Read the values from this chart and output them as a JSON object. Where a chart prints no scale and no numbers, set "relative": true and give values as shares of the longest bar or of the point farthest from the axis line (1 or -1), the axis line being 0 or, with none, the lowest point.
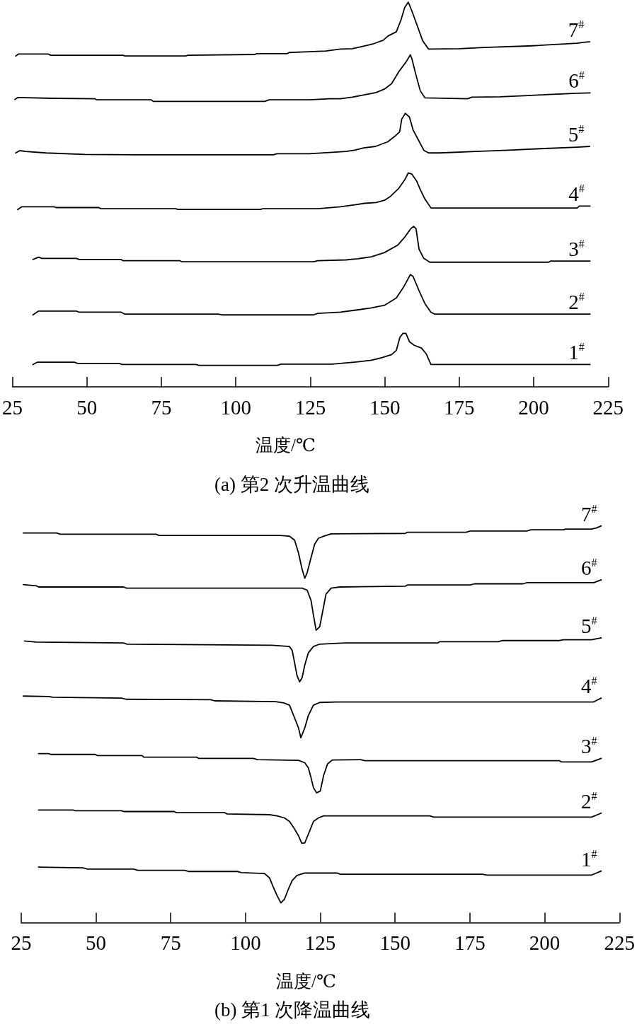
{
  "chart_data": [
    {
      "type": "line",
      "title": "(a) 第2 次升温曲线",
      "xlabel": "温度/℃",
      "relative": true,
      "xlim": [
        25,
        225
      ],
      "xticks": [
        25,
        50,
        75,
        100,
        125,
        150,
        175,
        200,
        225
      ],
      "marker": "none",
      "line_style": "solid",
      "series": [
        {
          "name": "1$^{#}$",
          "color": "#000000",
          "x": [
            31.9,
            33.3,
            45.8,
            46.9,
            60.8,
            61.9,
            86.6,
            87.7,
            113.9,
            115.2,
            132.3,
            138.4,
            139.8,
            145.5,
            149.1,
            152.3,
            153.9,
            155.1,
            156.1,
            157.1,
            158.3,
            159.9,
            162.3,
            163.9,
            165.5,
            218.9
          ],
          "values": [
            0.058,
            0.064,
            0.064,
            0.061,
            0.061,
            0.058,
            0.058,
            0.056,
            0.056,
            0.059,
            0.059,
            0.063,
            0.064,
            0.069,
            0.076,
            0.084,
            0.095,
            0.129,
            0.139,
            0.139,
            0.117,
            0.108,
            0.101,
            0.086,
            0.058,
            0.058
          ]
        },
        {
          "name": "2$^{#}$",
          "color": "#000000",
          "x": [
            31.9,
            33.8,
            46.5,
            47.4,
            61.5,
            62.8,
            94.1,
            95.5,
            126.1,
            127.5,
            135.1,
            139.8,
            145.5,
            149.9,
            153.9,
            156.3,
            158.6,
            159.5,
            161.5,
            163.5,
            165.5,
            166.8,
            218.9
          ],
          "values": [
            0.187,
            0.197,
            0.197,
            0.194,
            0.194,
            0.189,
            0.189,
            0.187,
            0.187,
            0.191,
            0.194,
            0.199,
            0.205,
            0.212,
            0.231,
            0.259,
            0.292,
            0.287,
            0.25,
            0.216,
            0.194,
            0.189,
            0.189
          ]
        },
        {
          "name": "3$^{#}$",
          "color": "#000000",
          "x": [
            31.9,
            33.8,
            34.9,
            46.5,
            47.4,
            61.5,
            62.1,
            81.2,
            81.9,
            126.1,
            127.5,
            137.0,
            141.0,
            145.5,
            149.9,
            154.3,
            156.7,
            158.7,
            159.7,
            160.5,
            161.5,
            163.1,
            165.1,
            205.0,
            205.7,
            218.9
          ],
          "values": [
            0.331,
            0.337,
            0.334,
            0.334,
            0.331,
            0.331,
            0.328,
            0.328,
            0.325,
            0.325,
            0.328,
            0.33,
            0.333,
            0.338,
            0.349,
            0.368,
            0.389,
            0.411,
            0.417,
            0.411,
            0.358,
            0.334,
            0.324,
            0.324,
            0.327,
            0.327
          ]
        },
        {
          "name": "4$^{#}$",
          "color": "#000000",
          "x": [
            26.8,
            28.1,
            39.0,
            39.7,
            54.0,
            54.7,
            79.9,
            80.5,
            108.3,
            109.0,
            127.5,
            135.1,
            139.9,
            143.1,
            147.1,
            149.9,
            151.9,
            154.7,
            156.7,
            157.9,
            159.1,
            160.7,
            161.9,
            163.5,
            165.5,
            214.6,
            215.3,
            218.9
          ],
          "values": [
            0.461,
            0.468,
            0.468,
            0.466,
            0.466,
            0.463,
            0.463,
            0.461,
            0.461,
            0.463,
            0.463,
            0.468,
            0.473,
            0.477,
            0.479,
            0.485,
            0.495,
            0.516,
            0.538,
            0.556,
            0.553,
            0.535,
            0.513,
            0.488,
            0.465,
            0.465,
            0.47,
            0.47
          ]
        },
        {
          "name": "5$^{#}$",
          "color": "#000000",
          "x": [
            26.1,
            27.5,
            29.4,
            36.3,
            49.3,
            66.4,
            112.6,
            113.8,
            124.7,
            137.0,
            139.8,
            142.9,
            146.9,
            151.0,
            153.8,
            155.0,
            155.7,
            156.9,
            158.3,
            159.5,
            161.2,
            163.1,
            164.7,
            168.3,
            180.6,
            191.5,
            202.2,
            214.5,
            218.8
          ],
          "values": [
            0.608,
            0.614,
            0.612,
            0.608,
            0.604,
            0.603,
            0.603,
            0.606,
            0.606,
            0.612,
            0.615,
            0.621,
            0.625,
            0.637,
            0.654,
            0.663,
            0.696,
            0.711,
            0.701,
            0.668,
            0.643,
            0.615,
            0.608,
            0.608,
            0.612,
            0.615,
            0.619,
            0.623,
            0.625
          ]
        },
        {
          "name": "6$^{#}$",
          "color": "#000000",
          "x": [
            25.8,
            26.8,
            38.4,
            52.6,
            53.3,
            71.6,
            72.3,
            109.7,
            111.2,
            124.7,
            131.5,
            135.1,
            139.1,
            143.1,
            147.1,
            149.9,
            152.3,
            154.7,
            157.1,
            158.6,
            159.1,
            160.3,
            161.9,
            163.5,
            177.8,
            179.2,
            188.7,
            198.1,
            205.0,
            214.5,
            218.9
          ],
          "values": [
            0.747,
            0.752,
            0.75,
            0.749,
            0.746,
            0.746,
            0.742,
            0.742,
            0.746,
            0.746,
            0.749,
            0.749,
            0.753,
            0.759,
            0.765,
            0.774,
            0.788,
            0.819,
            0.844,
            0.863,
            0.853,
            0.816,
            0.77,
            0.751,
            0.749,
            0.753,
            0.754,
            0.757,
            0.76,
            0.763,
            0.764
          ]
        },
        {
          "name": "7$^{#}$",
          "color": "#000000",
          "x": [
            26.1,
            27.0,
            37.0,
            37.9,
            62.1,
            62.8,
            83.2,
            83.9,
            106.4,
            107.0,
            117.2,
            117.9,
            124.7,
            130.2,
            135.1,
            139.1,
            143.1,
            146.3,
            149.5,
            151.1,
            153.9,
            155.5,
            156.7,
            157.9,
            159.1,
            160.7,
            162.7,
            164.7,
            175.1,
            183.2,
            198.2,
            214.5,
            217.2,
            218.8
          ],
          "values": [
            0.86,
            0.865,
            0.865,
            0.862,
            0.862,
            0.86,
            0.86,
            0.862,
            0.864,
            0.866,
            0.866,
            0.869,
            0.871,
            0.873,
            0.878,
            0.879,
            0.886,
            0.892,
            0.901,
            0.912,
            0.923,
            0.955,
            0.986,
            1.0,
            0.977,
            0.943,
            0.9,
            0.878,
            0.879,
            0.882,
            0.886,
            0.893,
            0.896,
            0.897
          ]
        }
      ]
    },
    {
      "type": "line",
      "title": "(b) 第1 次降温曲线",
      "xlabel": "温度/℃",
      "relative": true,
      "xlim": [
        25,
        225
      ],
      "xticks": [
        25,
        50,
        75,
        100,
        125,
        150,
        175,
        200,
        225
      ],
      "marker": "none",
      "line_style": "solid",
      "series": [
        {
          "name": "1$^{#}$",
          "color": "#000000",
          "x": [
            30.8,
            45.7,
            47.1,
            62.6,
            64.0,
            79.6,
            80.9,
            97.2,
            98.6,
            106.3,
            108.0,
            109.2,
            110.5,
            111.8,
            113.0,
            114.3,
            115.6,
            117.2,
            119.8,
            130.7,
            131.6,
            179.2,
            180.6,
            215.7,
            218.9
          ],
          "values": [
            0.14,
            0.138,
            0.135,
            0.135,
            0.132,
            0.132,
            0.129,
            0.129,
            0.126,
            0.124,
            0.113,
            0.091,
            0.069,
            0.05,
            0.059,
            0.084,
            0.106,
            0.119,
            0.125,
            0.125,
            0.122,
            0.122,
            0.12,
            0.12,
            0.13
          ]
        },
        {
          "name": "2$^{#}$",
          "color": "#000000",
          "x": [
            30.8,
            42.3,
            43.0,
            58.6,
            59.3,
            76.2,
            76.9,
            93.1,
            93.8,
            108.0,
            110.5,
            113.0,
            114.7,
            116.4,
            117.7,
            118.8,
            119.8,
            121.0,
            122.7,
            124.4,
            126.1,
            161.6,
            162.9,
            215.7,
            218.9
          ],
          "values": [
            0.284,
            0.284,
            0.282,
            0.282,
            0.28,
            0.28,
            0.277,
            0.277,
            0.274,
            0.272,
            0.269,
            0.264,
            0.255,
            0.236,
            0.219,
            0.2,
            0.201,
            0.223,
            0.255,
            0.264,
            0.269,
            0.269,
            0.266,
            0.266,
            0.276
          ]
        },
        {
          "name": "3$^{#}$",
          "color": "#000000",
          "x": [
            30.8,
            34.2,
            34.9,
            49.8,
            50.5,
            65.4,
            66.0,
            83.7,
            84.3,
            102.6,
            104.0,
            117.7,
            119.8,
            121.0,
            121.9,
            122.7,
            123.8,
            125.0,
            126.1,
            127.4,
            129.0,
            138.5,
            139.9,
            204.9,
            205.6,
            215.7,
            218.9
          ],
          "values": [
            0.426,
            0.426,
            0.424,
            0.424,
            0.421,
            0.421,
            0.417,
            0.417,
            0.414,
            0.414,
            0.411,
            0.409,
            0.403,
            0.39,
            0.365,
            0.34,
            0.327,
            0.332,
            0.371,
            0.4,
            0.41,
            0.411,
            0.408,
            0.408,
            0.405,
            0.405,
            0.414
          ]
        },
        {
          "name": "4$^{#}$",
          "color": "#000000",
          "x": [
            25.7,
            34.2,
            35.6,
            58.6,
            60.0,
            88.4,
            89.7,
            110.0,
            112.8,
            114.7,
            116.4,
            117.7,
            118.5,
            119.8,
            121.0,
            122.7,
            124.8,
            130.4,
            216.2,
            218.9
          ],
          "values": [
            0.571,
            0.57,
            0.568,
            0.566,
            0.563,
            0.562,
            0.559,
            0.557,
            0.554,
            0.548,
            0.516,
            0.491,
            0.466,
            0.491,
            0.522,
            0.548,
            0.555,
            0.556,
            0.556,
            0.566
          ]
        },
        {
          "name": "5$^{#}$",
          "color": "#000000",
          "x": [
            26.1,
            30.1,
            59.2,
            60.4,
            108.8,
            114.7,
            115.6,
            116.4,
            117.2,
            118.1,
            118.9,
            119.8,
            121.0,
            122.7,
            124.8,
            133.1,
            164.3,
            164.9,
            184.5,
            185.9,
            204.9,
            206.3,
            215.7,
            218.9
          ],
          "values": [
            0.71,
            0.707,
            0.705,
            0.702,
            0.699,
            0.696,
            0.686,
            0.655,
            0.623,
            0.607,
            0.617,
            0.649,
            0.68,
            0.696,
            0.702,
            0.705,
            0.705,
            0.708,
            0.708,
            0.711,
            0.711,
            0.713,
            0.713,
            0.718
          ]
        },
        {
          "name": "6$^{#}$",
          "color": "#000000",
          "x": [
            25.7,
            30.1,
            30.8,
            59.2,
            60.2,
            118.9,
            120.6,
            121.9,
            122.7,
            123.6,
            124.8,
            125.7,
            126.9,
            128.6,
            131.6,
            153.4,
            154.1,
            175.1,
            176.5,
            192.7,
            194.1,
            216.4,
            218.9
          ],
          "values": [
            0.852,
            0.849,
            0.846,
            0.846,
            0.843,
            0.843,
            0.838,
            0.812,
            0.775,
            0.737,
            0.746,
            0.781,
            0.828,
            0.843,
            0.846,
            0.848,
            0.851,
            0.851,
            0.854,
            0.854,
            0.857,
            0.857,
            0.864
          ]
        },
        {
          "name": "7$^{#}$",
          "color": "#000000",
          "x": [
            25.7,
            36.9,
            38.0,
            70.1,
            71.1,
            111.4,
            114.7,
            116.4,
            117.7,
            118.9,
            119.8,
            120.6,
            121.9,
            123.1,
            124.4,
            126.5,
            128.6,
            153.4,
            154.1,
            173.7,
            175.1,
            194.0,
            195.4,
            206.3,
            207.0,
            215.7,
            217.4,
            218.9
          ],
          "values": [
            0.982,
            0.982,
            0.979,
            0.979,
            0.976,
            0.976,
            0.974,
            0.964,
            0.932,
            0.891,
            0.868,
            0.882,
            0.92,
            0.954,
            0.969,
            0.975,
            0.98,
            0.981,
            0.984,
            0.984,
            0.987,
            0.987,
            0.99,
            0.99,
            0.992,
            0.992,
            0.995,
            1.0
          ]
        }
      ]
    }
  ]
}
